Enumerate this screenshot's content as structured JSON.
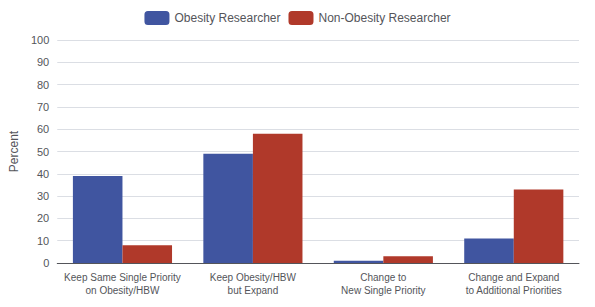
{
  "chart_data": {
    "type": "bar",
    "ylabel": "Percent",
    "categories": [
      "Keep Same Single Priority\non Obesity/HBW",
      "Keep Obesity/HBW\nbut Expand",
      "Change to\nNew Single Priority",
      "Change and Expand\nto Additional Priorities"
    ],
    "series": [
      {
        "name": "Obesity Researcher",
        "color": "#4055a0",
        "values": [
          39,
          49,
          1,
          11
        ]
      },
      {
        "name": "Non-Obesity Researcher",
        "color": "#b0392a",
        "values": [
          8,
          58,
          3,
          33
        ]
      }
    ],
    "ylim": [
      0,
      100
    ],
    "yticks": [
      0,
      10,
      20,
      30,
      40,
      50,
      60,
      70,
      80,
      90,
      100
    ],
    "grid": true,
    "legend": "top"
  }
}
